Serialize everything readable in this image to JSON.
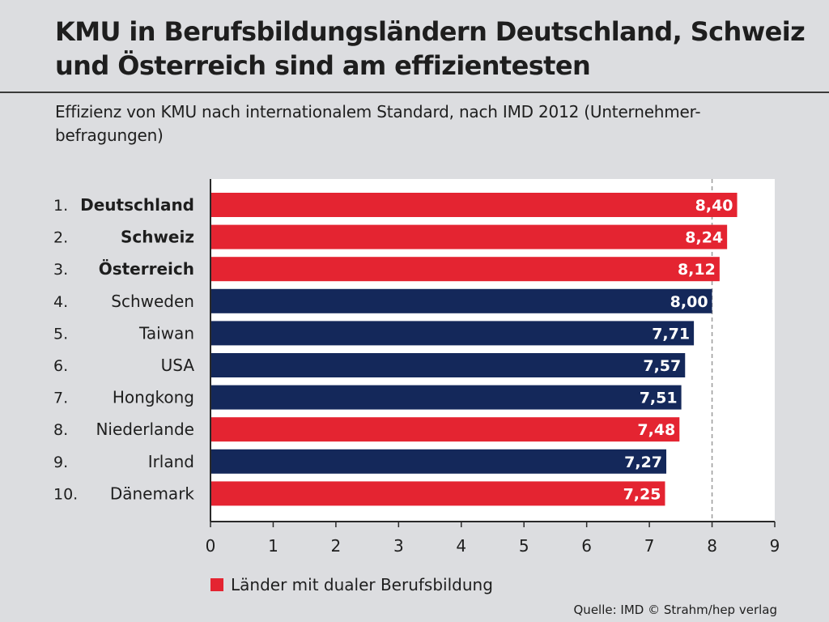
{
  "header": {
    "title_line1": "KMU in Berufsbildungsländern Deutschland, Schweiz",
    "title_line2": "und Österreich sind am effizientesten",
    "subtitle_line1": "Effizienz von KMU nach internationalem Standard, nach IMD 2012 (Unternehmer-",
    "subtitle_line2": "befragungen)"
  },
  "legend": {
    "label": "Länder mit dualer Berufsbildung",
    "color": "#e42431"
  },
  "source": "Quelle: IMD  © Strahm/hep verlag",
  "colors": {
    "dual": "#e42431",
    "other": "#14285a",
    "axis": "#2a2a2a",
    "grid": "#9a9a9a"
  },
  "chart_data": {
    "type": "bar",
    "orientation": "horizontal",
    "title": "KMU in Berufsbildungsländern Deutschland, Schweiz und Österreich sind am effizientesten",
    "subtitle": "Effizienz von KMU nach internationalem Standard, nach IMD 2012 (Unternehmerbefragungen)",
    "xlim": [
      0,
      9
    ],
    "xticks": [
      "0",
      "1",
      "2",
      "3",
      "4",
      "5",
      "6",
      "7",
      "8",
      "9"
    ],
    "gridline_dashed_at": 8,
    "bars": [
      {
        "rank": "1.",
        "country": "Deutschland",
        "value": 8.4,
        "label": "8,40",
        "dual": true,
        "bold": true
      },
      {
        "rank": "2.",
        "country": "Schweiz",
        "value": 8.24,
        "label": "8,24",
        "dual": true,
        "bold": true
      },
      {
        "rank": "3.",
        "country": "Österreich",
        "value": 8.12,
        "label": "8,12",
        "dual": true,
        "bold": true
      },
      {
        "rank": "4.",
        "country": "Schweden",
        "value": 8.0,
        "label": "8,00",
        "dual": false,
        "bold": false
      },
      {
        "rank": "5.",
        "country": "Taiwan",
        "value": 7.71,
        "label": "7,71",
        "dual": false,
        "bold": false
      },
      {
        "rank": "6.",
        "country": "USA",
        "value": 7.57,
        "label": "7,57",
        "dual": false,
        "bold": false
      },
      {
        "rank": "7.",
        "country": "Hongkong",
        "value": 7.51,
        "label": "7,51",
        "dual": false,
        "bold": false
      },
      {
        "rank": "8.",
        "country": "Niederlande",
        "value": 7.48,
        "label": "7,48",
        "dual": true,
        "bold": false
      },
      {
        "rank": "9.",
        "country": "Irland",
        "value": 7.27,
        "label": "7,27",
        "dual": false,
        "bold": false
      },
      {
        "rank": "10.",
        "country": "Dänemark",
        "value": 7.25,
        "label": "7,25",
        "dual": true,
        "bold": false
      }
    ],
    "legend": [
      "Länder mit dualer Berufsbildung"
    ]
  }
}
